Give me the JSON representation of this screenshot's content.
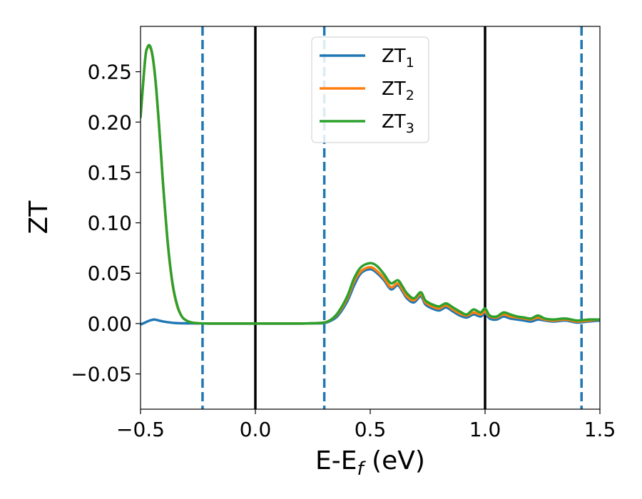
{
  "chart_data": {
    "type": "line",
    "xlabel": "E-E",
    "xlabel_sub": "f",
    "xlabel_unit": " (eV)",
    "ylabel": "ZT",
    "xlim": [
      -0.5,
      1.5
    ],
    "ylim": [
      -0.085,
      0.295
    ],
    "xticks": [
      -0.5,
      0.0,
      0.5,
      1.0,
      1.5
    ],
    "xtick_labels": [
      "−0.5",
      "0.0",
      "0.5",
      "1.0",
      "1.5"
    ],
    "yticks": [
      -0.05,
      0.0,
      0.05,
      0.1,
      0.15,
      0.2,
      0.25
    ],
    "ytick_labels": [
      "−0.05",
      "0.00",
      "0.05",
      "0.10",
      "0.15",
      "0.20",
      "0.25"
    ],
    "grid": false,
    "legend_position": "top-center",
    "vlines": [
      {
        "x": -0.23,
        "style": "dashed",
        "color": "#1f77b4"
      },
      {
        "x": 0.0,
        "style": "solid",
        "color": "#000000"
      },
      {
        "x": 0.3,
        "style": "dashed",
        "color": "#1f77b4"
      },
      {
        "x": 1.0,
        "style": "solid",
        "color": "#000000"
      },
      {
        "x": 1.42,
        "style": "dashed",
        "color": "#1f77b4"
      }
    ],
    "series": [
      {
        "name": "ZT",
        "name_sub": "1",
        "color": "#1f77b4",
        "x": [
          -0.5,
          -0.48,
          -0.46,
          -0.44,
          -0.42,
          -0.4,
          -0.35,
          -0.3,
          -0.25,
          -0.2,
          -0.1,
          0.0,
          0.1,
          0.2,
          0.25,
          0.3,
          0.33,
          0.36,
          0.4,
          0.43,
          0.46,
          0.5,
          0.53,
          0.56,
          0.59,
          0.62,
          0.64,
          0.66,
          0.69,
          0.72,
          0.74,
          0.77,
          0.8,
          0.83,
          0.86,
          0.89,
          0.92,
          0.95,
          0.98,
          1.0,
          1.02,
          1.05,
          1.08,
          1.11,
          1.14,
          1.17,
          1.2,
          1.23,
          1.26,
          1.3,
          1.35,
          1.4,
          1.45,
          1.5
        ],
        "y": [
          -0.001,
          0.001,
          0.003,
          0.004,
          0.003,
          0.002,
          0.0005,
          0.0002,
          0.0001,
          0.0,
          0.0,
          0.0,
          0.0,
          0.0,
          0.0002,
          0.0005,
          0.003,
          0.008,
          0.022,
          0.038,
          0.05,
          0.054,
          0.05,
          0.043,
          0.034,
          0.038,
          0.032,
          0.025,
          0.021,
          0.027,
          0.019,
          0.015,
          0.013,
          0.016,
          0.012,
          0.008,
          0.006,
          0.009,
          0.007,
          0.01,
          0.005,
          0.004,
          0.007,
          0.005,
          0.004,
          0.003,
          0.002,
          0.004,
          0.003,
          0.002,
          0.003,
          0.001,
          0.002,
          0.003
        ]
      },
      {
        "name": "ZT",
        "name_sub": "2",
        "color": "#ff7f0e",
        "x": [
          -0.5,
          -0.48,
          -0.47,
          -0.46,
          -0.45,
          -0.44,
          -0.43,
          -0.42,
          -0.41,
          -0.4,
          -0.38,
          -0.36,
          -0.34,
          -0.32,
          -0.3,
          -0.28,
          -0.26,
          -0.24,
          -0.22,
          -0.2,
          -0.1,
          0.0,
          0.1,
          0.2,
          0.25,
          0.3,
          0.33,
          0.36,
          0.4,
          0.43,
          0.46,
          0.5,
          0.53,
          0.56,
          0.59,
          0.62,
          0.64,
          0.66,
          0.69,
          0.72,
          0.74,
          0.77,
          0.8,
          0.83,
          0.86,
          0.89,
          0.92,
          0.95,
          0.98,
          1.0,
          1.02,
          1.05,
          1.08,
          1.11,
          1.14,
          1.17,
          1.2,
          1.23,
          1.26,
          1.3,
          1.35,
          1.4,
          1.45,
          1.5
        ],
        "y": [
          0.205,
          0.262,
          0.274,
          0.275,
          0.268,
          0.252,
          0.228,
          0.198,
          0.165,
          0.132,
          0.076,
          0.038,
          0.017,
          0.007,
          0.003,
          0.0012,
          0.0005,
          0.0002,
          0.0001,
          0.0,
          0.0,
          0.0,
          0.0,
          0.0,
          0.0003,
          0.001,
          0.004,
          0.01,
          0.025,
          0.042,
          0.052,
          0.056,
          0.052,
          0.045,
          0.036,
          0.04,
          0.034,
          0.027,
          0.023,
          0.029,
          0.021,
          0.017,
          0.015,
          0.018,
          0.014,
          0.01,
          0.008,
          0.011,
          0.009,
          0.012,
          0.007,
          0.006,
          0.009,
          0.007,
          0.006,
          0.005,
          0.004,
          0.006,
          0.004,
          0.003,
          0.004,
          0.002,
          0.003,
          0.004
        ]
      },
      {
        "name": "ZT",
        "name_sub": "3",
        "color": "#2ca02c",
        "x": [
          -0.5,
          -0.48,
          -0.47,
          -0.46,
          -0.45,
          -0.44,
          -0.43,
          -0.42,
          -0.41,
          -0.4,
          -0.38,
          -0.36,
          -0.34,
          -0.32,
          -0.3,
          -0.28,
          -0.26,
          -0.24,
          -0.22,
          -0.2,
          -0.1,
          0.0,
          0.1,
          0.2,
          0.25,
          0.3,
          0.33,
          0.36,
          0.4,
          0.43,
          0.46,
          0.5,
          0.53,
          0.56,
          0.59,
          0.62,
          0.64,
          0.66,
          0.69,
          0.72,
          0.74,
          0.77,
          0.8,
          0.83,
          0.86,
          0.89,
          0.92,
          0.95,
          0.98,
          1.0,
          1.02,
          1.05,
          1.08,
          1.11,
          1.14,
          1.17,
          1.2,
          1.23,
          1.26,
          1.3,
          1.35,
          1.4,
          1.45,
          1.5
        ],
        "y": [
          0.205,
          0.262,
          0.274,
          0.276,
          0.269,
          0.253,
          0.229,
          0.199,
          0.166,
          0.133,
          0.077,
          0.039,
          0.018,
          0.007,
          0.003,
          0.0012,
          0.0005,
          0.0002,
          0.0001,
          0.0,
          0.0,
          0.0,
          0.0,
          0.0,
          0.0003,
          0.001,
          0.004,
          0.011,
          0.027,
          0.045,
          0.056,
          0.06,
          0.057,
          0.049,
          0.04,
          0.043,
          0.037,
          0.03,
          0.025,
          0.031,
          0.023,
          0.019,
          0.017,
          0.02,
          0.016,
          0.012,
          0.009,
          0.014,
          0.011,
          0.015,
          0.008,
          0.007,
          0.011,
          0.009,
          0.007,
          0.006,
          0.005,
          0.008,
          0.005,
          0.004,
          0.005,
          0.003,
          0.004,
          0.004
        ]
      }
    ]
  }
}
